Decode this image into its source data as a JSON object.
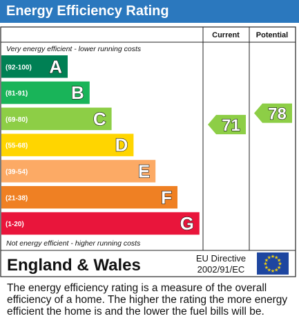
{
  "header": {
    "title": "Energy Efficiency Rating"
  },
  "columns": {
    "current": "Current",
    "potential": "Potential"
  },
  "captions": {
    "top": "Very energy efficient - lower running costs",
    "bottom": "Not energy efficient - higher running costs"
  },
  "footer": {
    "region": "England & Wales",
    "directive_line1": "EU Directive",
    "directive_line2": "2002/91/EC"
  },
  "description": "The energy efficiency rating is a measure of the overall efficiency of a home. The higher the rating the more energy efficient the home is and the lower the fuel bills will be.",
  "colors": {
    "header": "#2b78be",
    "eu_flag": "#1e46a0",
    "eu_stars": "#f5d20a"
  },
  "chart_data": {
    "type": "bar",
    "title": "Energy Efficiency Rating",
    "bands": [
      {
        "letter": "A",
        "range": "(92-100)",
        "min": 92,
        "max": 100,
        "color": "#008054"
      },
      {
        "letter": "B",
        "range": "(81-91)",
        "min": 81,
        "max": 91,
        "color": "#19b459"
      },
      {
        "letter": "C",
        "range": "(69-80)",
        "min": 69,
        "max": 80,
        "color": "#8dce46"
      },
      {
        "letter": "D",
        "range": "(55-68)",
        "min": 55,
        "max": 68,
        "color": "#ffd500"
      },
      {
        "letter": "E",
        "range": "(39-54)",
        "min": 39,
        "max": 54,
        "color": "#fcaa65"
      },
      {
        "letter": "F",
        "range": "(21-38)",
        "min": 21,
        "max": 38,
        "color": "#ef8023"
      },
      {
        "letter": "G",
        "range": "(1-20)",
        "min": 1,
        "max": 20,
        "color": "#e9153b"
      }
    ],
    "current": {
      "value": 71,
      "band": "C",
      "color": "#8dce46"
    },
    "potential": {
      "value": 78,
      "band": "C",
      "color": "#8dce46"
    }
  }
}
